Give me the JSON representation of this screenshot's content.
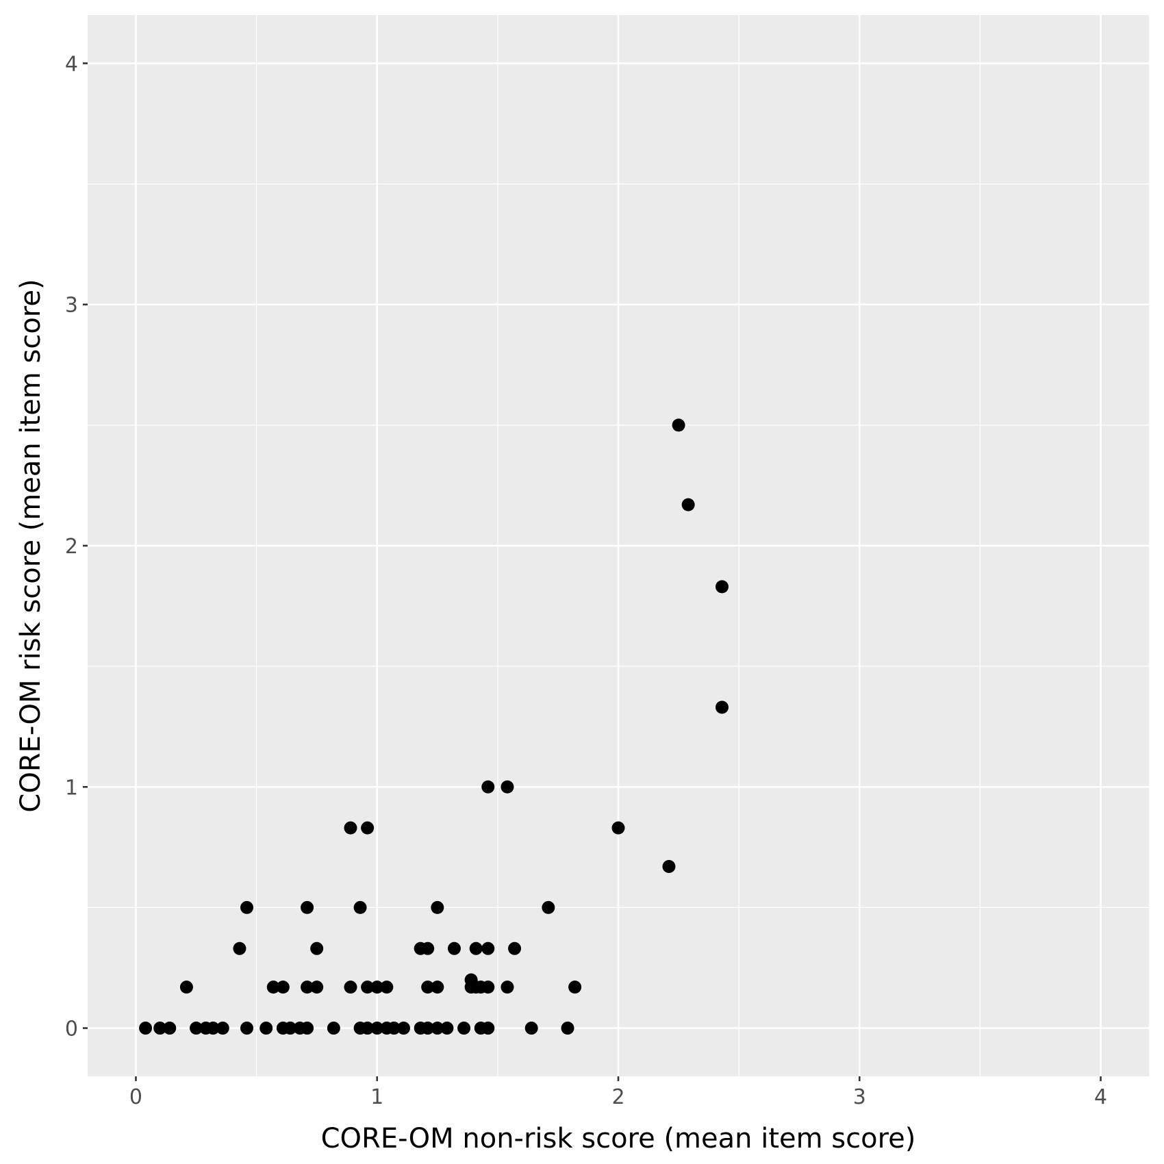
{
  "chart_data": {
    "type": "scatter",
    "title": "",
    "xlabel": "CORE-OM non-risk score (mean item score)",
    "ylabel": "CORE-OM risk score (mean item score)",
    "xlim": [
      -0.2,
      4.2
    ],
    "ylim": [
      -0.2,
      4.2
    ],
    "x_ticks": [
      0,
      1,
      2,
      3,
      4
    ],
    "y_ticks": [
      0,
      1,
      2,
      3,
      4
    ],
    "x_tick_labels": [
      "0",
      "1",
      "2",
      "3",
      "4"
    ],
    "y_tick_labels": [
      "0",
      "1",
      "2",
      "3",
      "4"
    ],
    "grid": true,
    "legend": "none",
    "colors": {
      "panel": "#ebebeb",
      "grid": "#ffffff",
      "point": "#000000",
      "tick": "#333333"
    },
    "series": [
      {
        "x": [
          0.04,
          0.1,
          0.14,
          0.21,
          0.25,
          0.29,
          0.32,
          0.36,
          0.43,
          0.46,
          0.46,
          0.54,
          0.57,
          0.61,
          0.61,
          0.64,
          0.68,
          0.71,
          0.71,
          0.71,
          0.75,
          0.75,
          0.82,
          0.89,
          0.89,
          0.93,
          0.93,
          0.96,
          0.96,
          0.96,
          1.0,
          1.0,
          1.04,
          1.04,
          1.07,
          1.11,
          1.18,
          1.18,
          1.21,
          1.21,
          1.21,
          1.25,
          1.25,
          1.25,
          1.29,
          1.32,
          1.36,
          1.39,
          1.39,
          1.41,
          1.41,
          1.43,
          1.43,
          1.46,
          1.46,
          1.46,
          1.46,
          1.54,
          1.54,
          1.57,
          1.64,
          1.71,
          1.79,
          1.82,
          2.0,
          2.21,
          2.25,
          2.29,
          2.43,
          2.43
        ],
        "y": [
          0,
          0,
          0,
          0.17,
          0,
          0,
          0,
          0,
          0.33,
          0.5,
          0,
          0,
          0.17,
          0.17,
          0,
          0,
          0,
          0.5,
          0.17,
          0,
          0.33,
          0.17,
          0,
          0.83,
          0.17,
          0.5,
          0,
          0.83,
          0.17,
          0,
          0.17,
          0,
          0.17,
          0,
          0,
          0,
          0.33,
          0,
          0.33,
          0.17,
          0,
          0.5,
          0.17,
          0,
          0,
          0.33,
          0,
          0.17,
          0.2,
          0.33,
          0.17,
          0.17,
          0,
          1.0,
          0.33,
          0.17,
          0,
          1.0,
          0.17,
          0.33,
          0,
          0.5,
          0,
          0.17,
          0.83,
          0.67,
          2.5,
          2.17,
          1.83,
          1.33
        ]
      }
    ]
  }
}
